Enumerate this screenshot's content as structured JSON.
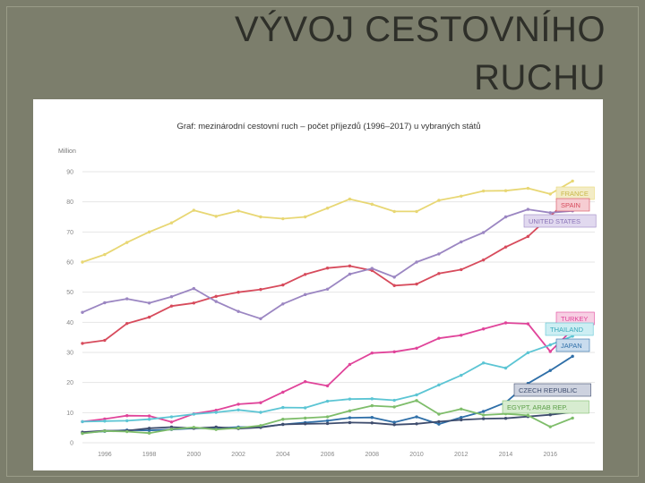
{
  "slide": {
    "title_line1": "VÝVOJ CESTOVNÍHO",
    "title_line2": "RUCHU"
  },
  "chart_data": {
    "type": "line",
    "title": "Graf: mezinárodní cestovní ruch – počet příjezdů (1996–2017) u vybraných států",
    "ylabel": "Million",
    "xlabel": "",
    "ylim": [
      0,
      90
    ],
    "yticks": [
      0,
      10,
      20,
      30,
      40,
      50,
      60,
      70,
      80,
      90
    ],
    "xlim": [
      1995,
      2018
    ],
    "xticks": [
      1996,
      1998,
      2000,
      2002,
      2004,
      2006,
      2008,
      2010,
      2012,
      2014,
      2016
    ],
    "grid": true,
    "x": [
      1995,
      1996,
      1997,
      1998,
      1999,
      2000,
      2001,
      2002,
      2003,
      2004,
      2005,
      2006,
      2007,
      2008,
      2009,
      2010,
      2011,
      2012,
      2013,
      2014,
      2015,
      2016,
      2017
    ],
    "series": [
      {
        "name": "FRANCE",
        "color": "#e8d774",
        "label_bg": "#f3ecc6",
        "label_text": "#c9b84a",
        "values": [
          60,
          62.5,
          66.5,
          70,
          73,
          77.2,
          75.2,
          77,
          75,
          74.4,
          75,
          77.9,
          80.9,
          79.2,
          76.8,
          76.8,
          80.5,
          81.9,
          83.6,
          83.7,
          84.5,
          82.6,
          86.9
        ]
      },
      {
        "name": "SPAIN",
        "color": "#d74b5c",
        "label_bg": "#f6cdd2",
        "label_text": "#d74b5c",
        "values": [
          33,
          34,
          39.6,
          41.7,
          45.4,
          46.4,
          48.6,
          50,
          50.9,
          52.4,
          55.9,
          58,
          58.7,
          57.2,
          52.2,
          52.7,
          56.2,
          57.5,
          60.7,
          65,
          68.5,
          75.3,
          81.8
        ]
      },
      {
        "name": "UNITED STATES",
        "color": "#9b86c2",
        "label_bg": "#e1d9ef",
        "label_text": "#8a74b8",
        "values": [
          43.3,
          46.5,
          47.8,
          46.4,
          48.5,
          51.2,
          46.9,
          43.6,
          41.2,
          46.1,
          49.2,
          51,
          56,
          57.9,
          55,
          60,
          62.7,
          66.7,
          69.8,
          75,
          77.5,
          76.4,
          77
        ]
      },
      {
        "name": "TURKEY",
        "color": "#e0449a",
        "label_bg": "#f7cfe3",
        "label_text": "#e0449a",
        "values": [
          7,
          7.9,
          9.0,
          8.9,
          6.9,
          9.6,
          10.8,
          12.8,
          13.3,
          16.8,
          20.3,
          18.9,
          26,
          29.8,
          30.2,
          31.4,
          34.7,
          35.7,
          37.8,
          39.8,
          39.5,
          30.3,
          37.6
        ]
      },
      {
        "name": "THAILAND",
        "color": "#5cc5d4",
        "label_bg": "#cdeef3",
        "label_text": "#3aa9bb",
        "values": [
          7,
          7.2,
          7.3,
          7.8,
          8.6,
          9.5,
          10.1,
          10.9,
          10.1,
          11.7,
          11.6,
          13.8,
          14.5,
          14.6,
          14.1,
          15.9,
          19.2,
          22.4,
          26.5,
          24.8,
          29.9,
          32.5,
          35.4
        ]
      },
      {
        "name": "JAPAN",
        "color": "#2f6fa8",
        "label_bg": "#c9dcee",
        "label_text": "#2f6fa8",
        "values": [
          3.3,
          3.8,
          4.2,
          4.1,
          4.4,
          4.8,
          4.8,
          5.2,
          5.2,
          6.1,
          6.7,
          7.3,
          8.3,
          8.4,
          6.8,
          8.6,
          6.2,
          8.4,
          10.4,
          13.4,
          19.7,
          24,
          28.7
        ]
      },
      {
        "name": "CZECH REPUBLIC",
        "color": "#3f4d6e",
        "label_bg": "#cdd2df",
        "label_text": "#3f4d6e",
        "values": [
          3.5,
          4,
          4,
          4.8,
          5.2,
          4.8,
          5.2,
          4.7,
          5.1,
          6.1,
          6.3,
          6.4,
          6.7,
          6.6,
          6.0,
          6.3,
          7.0,
          7.6,
          8.0,
          8.1,
          8.7,
          9.3,
          10.2
        ]
      },
      {
        "name": "EGYPT, ARAB REP.",
        "color": "#7ebd6a",
        "label_bg": "#d7ecd0",
        "label_text": "#5a9e46",
        "values": [
          3.1,
          3.9,
          3.7,
          3.2,
          4.5,
          5.1,
          4.4,
          4.9,
          5.7,
          7.8,
          8.2,
          8.6,
          10.6,
          12.3,
          11.9,
          14,
          9.5,
          11.2,
          9.2,
          9.6,
          9.1,
          5.3,
          8.2
        ]
      }
    ]
  }
}
